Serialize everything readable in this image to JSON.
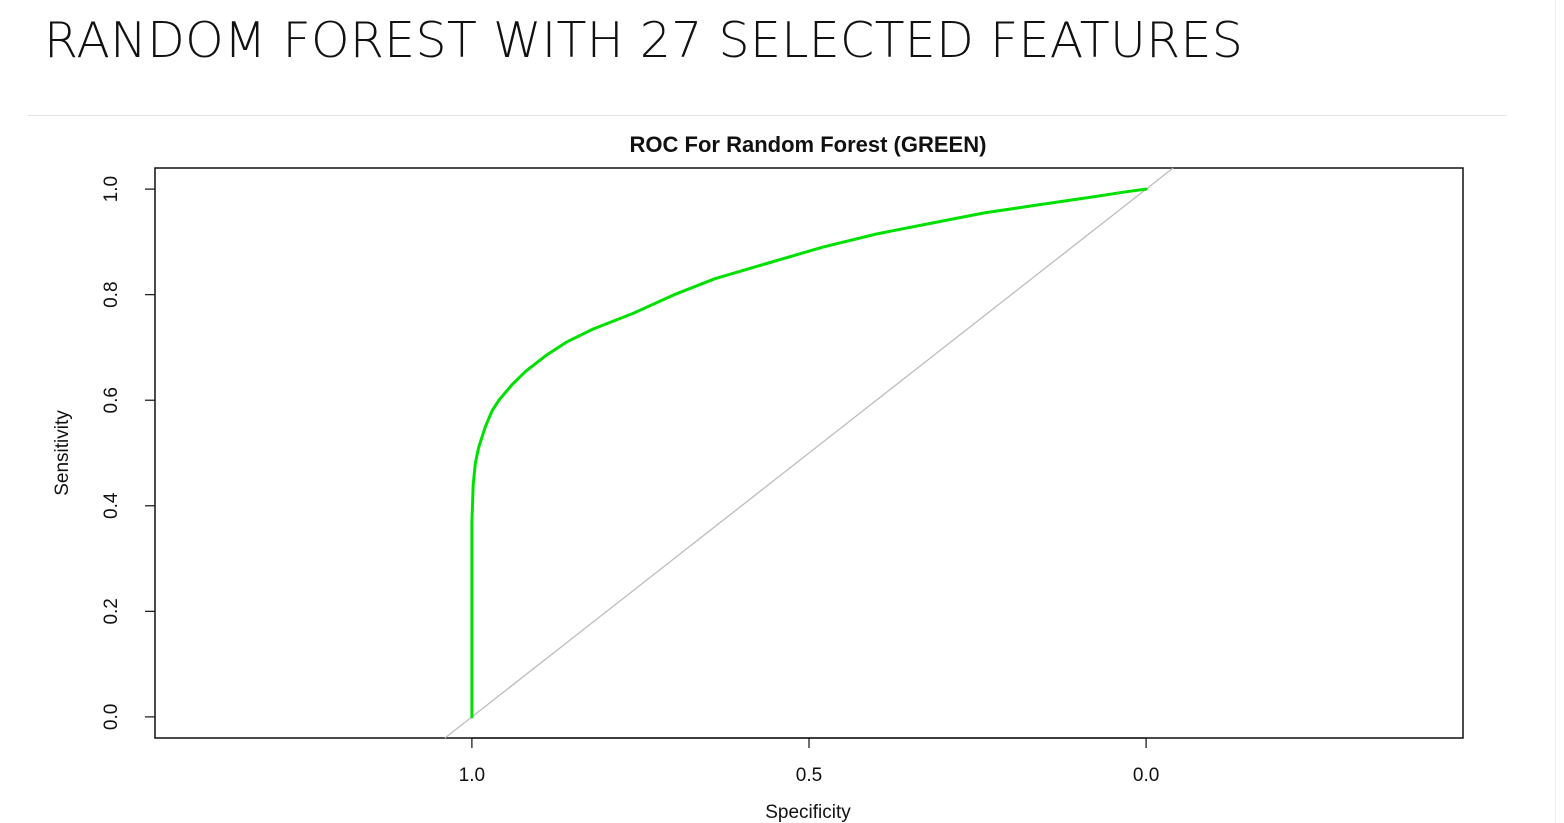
{
  "slide": {
    "title": "RANDOM FOREST WITH 27 SELECTED FEATURES"
  },
  "chart_data": {
    "type": "line",
    "title": "ROC For Random Forest (GREEN)",
    "xlabel": "Specificity",
    "ylabel": "Sensitivity",
    "x_reversed": true,
    "xlim": [
      1.47,
      -0.47
    ],
    "ylim": [
      -0.04,
      1.04
    ],
    "xticks": [
      1.0,
      0.5,
      0.0
    ],
    "xtick_labels": [
      "1.0",
      "0.5",
      "0.0"
    ],
    "yticks": [
      0.0,
      0.2,
      0.4,
      0.6,
      0.8,
      1.0
    ],
    "ytick_labels": [
      "0.0",
      "0.2",
      "0.4",
      "0.6",
      "0.8",
      "1.0"
    ],
    "grid": false,
    "reference_line": {
      "from": [
        1.0,
        0.0
      ],
      "to": [
        0.0,
        1.0
      ],
      "color": "#bdbdbd"
    },
    "series": [
      {
        "color": "#00e000",
        "x": [
          1.0,
          1.0,
          1.0,
          0.998,
          0.995,
          0.99,
          0.98,
          0.97,
          0.96,
          0.94,
          0.92,
          0.89,
          0.86,
          0.82,
          0.76,
          0.7,
          0.64,
          0.56,
          0.48,
          0.4,
          0.32,
          0.24,
          0.16,
          0.08,
          0.03,
          0.0
        ],
        "y": [
          0.0,
          0.2,
          0.37,
          0.44,
          0.48,
          0.51,
          0.55,
          0.58,
          0.6,
          0.63,
          0.655,
          0.685,
          0.71,
          0.735,
          0.765,
          0.8,
          0.83,
          0.86,
          0.89,
          0.915,
          0.935,
          0.955,
          0.97,
          0.985,
          0.995,
          1.0
        ]
      }
    ]
  }
}
